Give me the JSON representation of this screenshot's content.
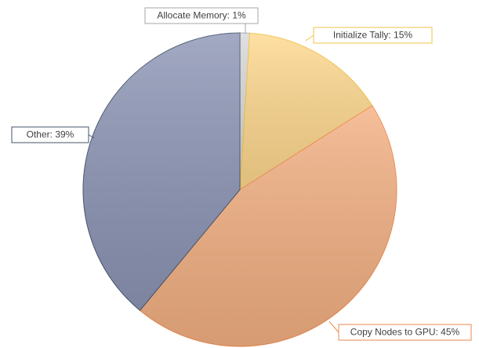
{
  "chart_data": {
    "type": "pie",
    "values": [
      1,
      15,
      45,
      39
    ],
    "value_labels": [
      "Allocate Memory: 1%",
      "Initialize Tally: 15%",
      "Copy Nodes to GPU: 45%",
      "Other: 39%"
    ],
    "colors": [
      "#d9d9d9",
      "#ffd98f",
      "#f4b183",
      "#8e96b6"
    ],
    "edge_colors": [
      "#a6a6a6",
      "#f2c34a",
      "#ee8a4e",
      "#44546a"
    ],
    "start_angle": 90,
    "direction": "clockwise"
  }
}
